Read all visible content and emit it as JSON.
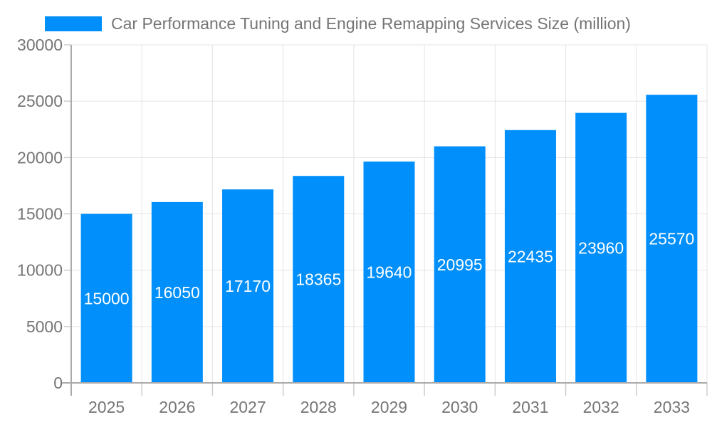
{
  "legend": {
    "label": "Car Performance Tuning and Engine Remapping Services Size (million)"
  },
  "chart_data": {
    "type": "bar",
    "title": "Car Performance Tuning and Engine Remapping Services Size (million)",
    "categories": [
      "2025",
      "2026",
      "2027",
      "2028",
      "2029",
      "2030",
      "2031",
      "2032",
      "2033"
    ],
    "values": [
      15000,
      16050,
      17170,
      18365,
      19640,
      20995,
      22435,
      23960,
      25570
    ],
    "data_labels": [
      "15000",
      "16050",
      "17170",
      "18365",
      "19640",
      "20995",
      "22435",
      "23960",
      "25570"
    ],
    "xlabel": "",
    "ylabel": "",
    "ylim": [
      0,
      30000
    ],
    "ytick_step": 5000,
    "yticks": [
      0,
      5000,
      10000,
      15000,
      20000,
      25000,
      30000
    ],
    "grid": true,
    "legend_position": "top-left",
    "data_label_position": "center-of-bar",
    "colors": {
      "bar": "#008FFB",
      "data_label": "#ffffff",
      "axis_label": "#757575",
      "grid_line": "#e4e4e4",
      "axis_line": "#aaaaaa",
      "tick_line": "#cccccc",
      "background": "#ffffff"
    }
  }
}
